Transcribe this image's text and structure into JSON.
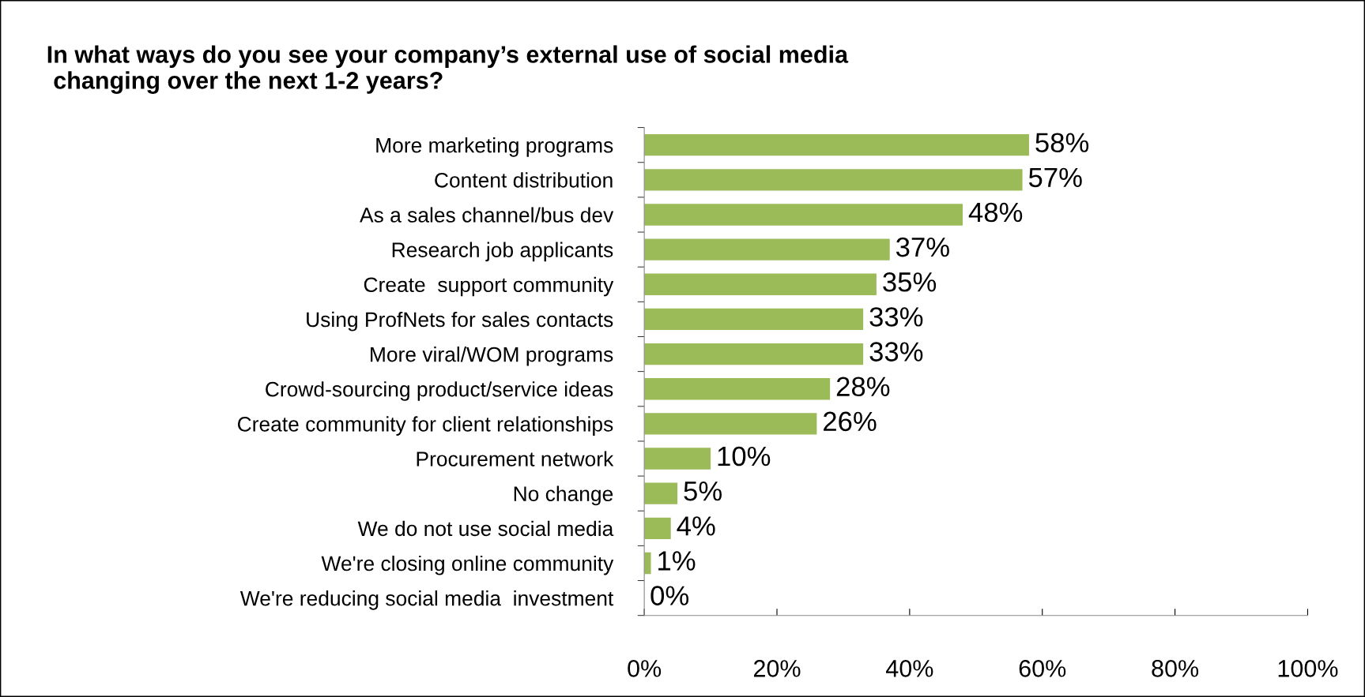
{
  "chart_data": {
    "type": "bar",
    "orientation": "horizontal",
    "title": "In what ways do you see your company’s external use of social media\n changing over the next 1-2 years?",
    "categories": [
      "More marketing programs",
      "Content distribution",
      "As a sales channel/bus dev",
      "Research job applicants",
      "Create  support community",
      "Using ProfNets for sales contacts",
      "More viral/WOM programs",
      "Crowd-sourcing product/service ideas",
      "Create community for client relationships",
      "Procurement network",
      "No change",
      "We do not use social media",
      "We're closing online community",
      "We're reducing social media  investment"
    ],
    "values": [
      58,
      57,
      48,
      37,
      35,
      33,
      33,
      28,
      26,
      10,
      5,
      4,
      1,
      0
    ],
    "value_labels": [
      "58%",
      "57%",
      "48%",
      "37%",
      "35%",
      "33%",
      "33%",
      "28%",
      "26%",
      "10%",
      "5%",
      "4%",
      "1%",
      "0%"
    ],
    "color": "#9bbb59",
    "xlim": [
      0,
      100
    ],
    "xticks": [
      {
        "value": 0,
        "label": "0%"
      },
      {
        "value": 20,
        "label": "20%"
      },
      {
        "value": 40,
        "label": "40%"
      },
      {
        "value": 60,
        "label": "60%"
      },
      {
        "value": 80,
        "label": "80%"
      },
      {
        "value": 100,
        "label": "100%"
      }
    ],
    "grid": false,
    "legend": false
  }
}
